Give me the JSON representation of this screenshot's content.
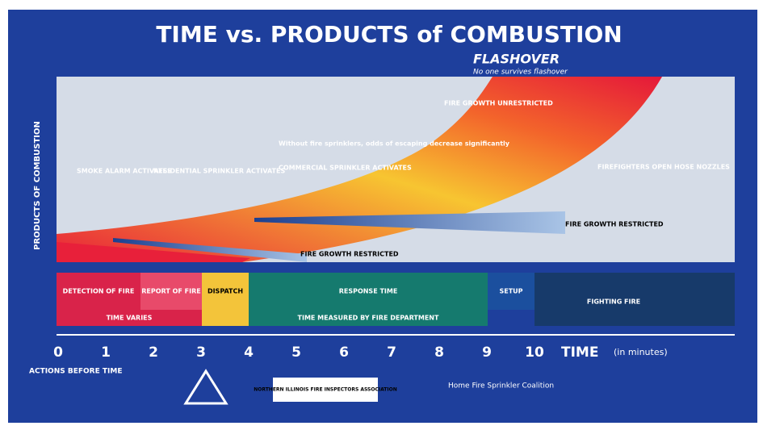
{
  "header": {
    "title": "TIME vs. PRODUCTS of COMBUSTION",
    "flashover": "FLASHOVER",
    "flashover_note": "No one survives flashover"
  },
  "plot": {
    "y_axis_label": "PRODUCTS OF COMBUSTION",
    "annotations": [
      "FIRE GROWTH UNRESTRICTED",
      "SMOKE ALARM ACTIVATES",
      "RESIDENTIAL SPRINKLER ACTIVATES",
      "Without fire sprinklers, odds of escaping decrease significantly",
      "COMMERCIAL SPRINKLER ACTIVATES",
      "FIREFIGHTERS OPEN HOSE NOZZLES",
      "FIRE GROWTH RESTRICTED",
      "FIRE GROWTH RESTRICTED"
    ]
  },
  "timeline": {
    "segments": [
      "DETECTION OF FIRE",
      "REPORT OF FIRE",
      "DISPATCH",
      "RESPONSE TIME",
      "SETUP",
      "FIGHTING FIRE"
    ],
    "row2": [
      "TIME VARIES",
      "TIME MEASURED BY FIRE DEPARTMENT"
    ]
  },
  "x_axis": {
    "ticks": [
      "0",
      "1",
      "2",
      "3",
      "4",
      "5",
      "6",
      "7",
      "8",
      "9",
      "10"
    ],
    "label": "TIME",
    "unit": "(in minutes)"
  },
  "footer": {
    "actions": "ACTIONS BEFORE TIME",
    "association": "NORTHERN ILLINOIS FIRE INSPECTORS ASSOCIATION",
    "coalition": "Home Fire Sprinkler Coalition"
  }
}
